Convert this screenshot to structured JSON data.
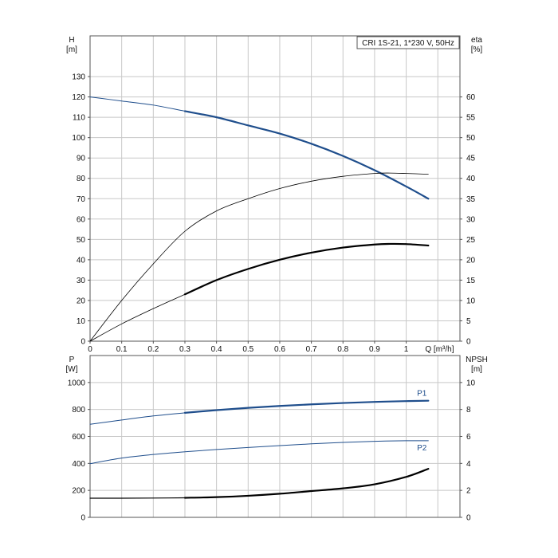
{
  "chart_data": [
    {
      "type": "line",
      "title": "CRI 1S-21, 1*230 V, 50Hz",
      "xlabel": "Q [m³/h]",
      "xlim": [
        0,
        1.17
      ],
      "xticks": [
        0,
        0.1,
        0.2,
        0.3,
        0.4,
        0.5,
        0.6,
        0.7,
        0.8,
        0.9,
        1.0
      ],
      "y_left": {
        "label_line1": "H",
        "label_line2": "[m]",
        "lim": [
          0,
          150
        ],
        "ticks": [
          0,
          10,
          20,
          30,
          40,
          50,
          60,
          70,
          80,
          90,
          100,
          110,
          120,
          130
        ]
      },
      "y_right": {
        "label_line1": "eta",
        "label_line2": "[%]",
        "lim": [
          0,
          75
        ],
        "ticks": [
          0,
          5,
          10,
          15,
          20,
          25,
          30,
          35,
          40,
          45,
          50,
          55,
          60
        ]
      },
      "grid": true,
      "series": [
        {
          "axis": "left",
          "color": "#1f4e8c",
          "thin_width": 1,
          "bold_width": 2.2,
          "bold_from": 0.3,
          "x": [
            0,
            0.1,
            0.2,
            0.3,
            0.4,
            0.5,
            0.6,
            0.7,
            0.8,
            0.9,
            1.0,
            1.07
          ],
          "y": [
            120,
            118,
            116,
            113,
            110,
            106,
            102,
            97,
            91,
            84,
            76,
            70
          ]
        },
        {
          "axis": "right",
          "color": "#000000",
          "thin_width": 0.8,
          "bold_width": 0.8,
          "bold_from": 0.3,
          "x": [
            0,
            0.1,
            0.2,
            0.3,
            0.4,
            0.5,
            0.6,
            0.7,
            0.8,
            0.9,
            0.95,
            1.0,
            1.07
          ],
          "y": [
            0,
            10,
            19,
            27,
            32,
            35,
            37.5,
            39.3,
            40.5,
            41.2,
            41.3,
            41.2,
            41
          ]
        },
        {
          "axis": "left",
          "color": "#000000",
          "thin_width": 0.8,
          "bold_width": 2.2,
          "bold_from": 0.3,
          "x": [
            0,
            0.1,
            0.2,
            0.3,
            0.4,
            0.5,
            0.6,
            0.7,
            0.8,
            0.9,
            0.95,
            1.0,
            1.07
          ],
          "y": [
            0,
            8.5,
            16,
            23,
            30,
            35.5,
            40,
            43.5,
            46,
            47.5,
            47.8,
            47.7,
            47
          ]
        }
      ]
    },
    {
      "type": "line",
      "xlim": [
        0,
        1.17
      ],
      "y_left": {
        "label_line1": "P",
        "label_line2": "[W]",
        "lim": [
          0,
          1200
        ],
        "ticks": [
          0,
          200,
          400,
          600,
          800,
          1000
        ]
      },
      "y_right": {
        "label_line1": "NPSH",
        "label_line2": "[m]",
        "lim": [
          0,
          12
        ],
        "ticks": [
          0,
          2,
          4,
          6,
          8,
          10
        ]
      },
      "grid": true,
      "series": [
        {
          "name": "P1",
          "axis": "left",
          "color": "#1f4e8c",
          "thin_width": 1,
          "bold_width": 2.2,
          "bold_from": 0.3,
          "x": [
            0,
            0.1,
            0.2,
            0.3,
            0.4,
            0.5,
            0.6,
            0.7,
            0.8,
            0.9,
            1.0,
            1.07
          ],
          "y": [
            690,
            722,
            752,
            775,
            795,
            812,
            826,
            838,
            848,
            856,
            862,
            865
          ]
        },
        {
          "name": "P2",
          "axis": "left",
          "color": "#1f4e8c",
          "thin_width": 1,
          "bold_width": 1,
          "bold_from": 0.3,
          "x": [
            0,
            0.1,
            0.2,
            0.3,
            0.4,
            0.5,
            0.6,
            0.7,
            0.8,
            0.9,
            1.0,
            1.07
          ],
          "y": [
            398,
            440,
            466,
            486,
            503,
            518,
            532,
            545,
            556,
            564,
            568,
            568
          ]
        },
        {
          "axis": "right",
          "color": "#000000",
          "thin_width": 1.2,
          "bold_width": 2.2,
          "bold_from": 0.3,
          "x": [
            0,
            0.1,
            0.2,
            0.3,
            0.4,
            0.5,
            0.6,
            0.7,
            0.8,
            0.9,
            1.0,
            1.07
          ],
          "y": [
            1.42,
            1.42,
            1.43,
            1.45,
            1.5,
            1.6,
            1.75,
            1.95,
            2.15,
            2.45,
            3.0,
            3.6
          ]
        }
      ]
    }
  ]
}
